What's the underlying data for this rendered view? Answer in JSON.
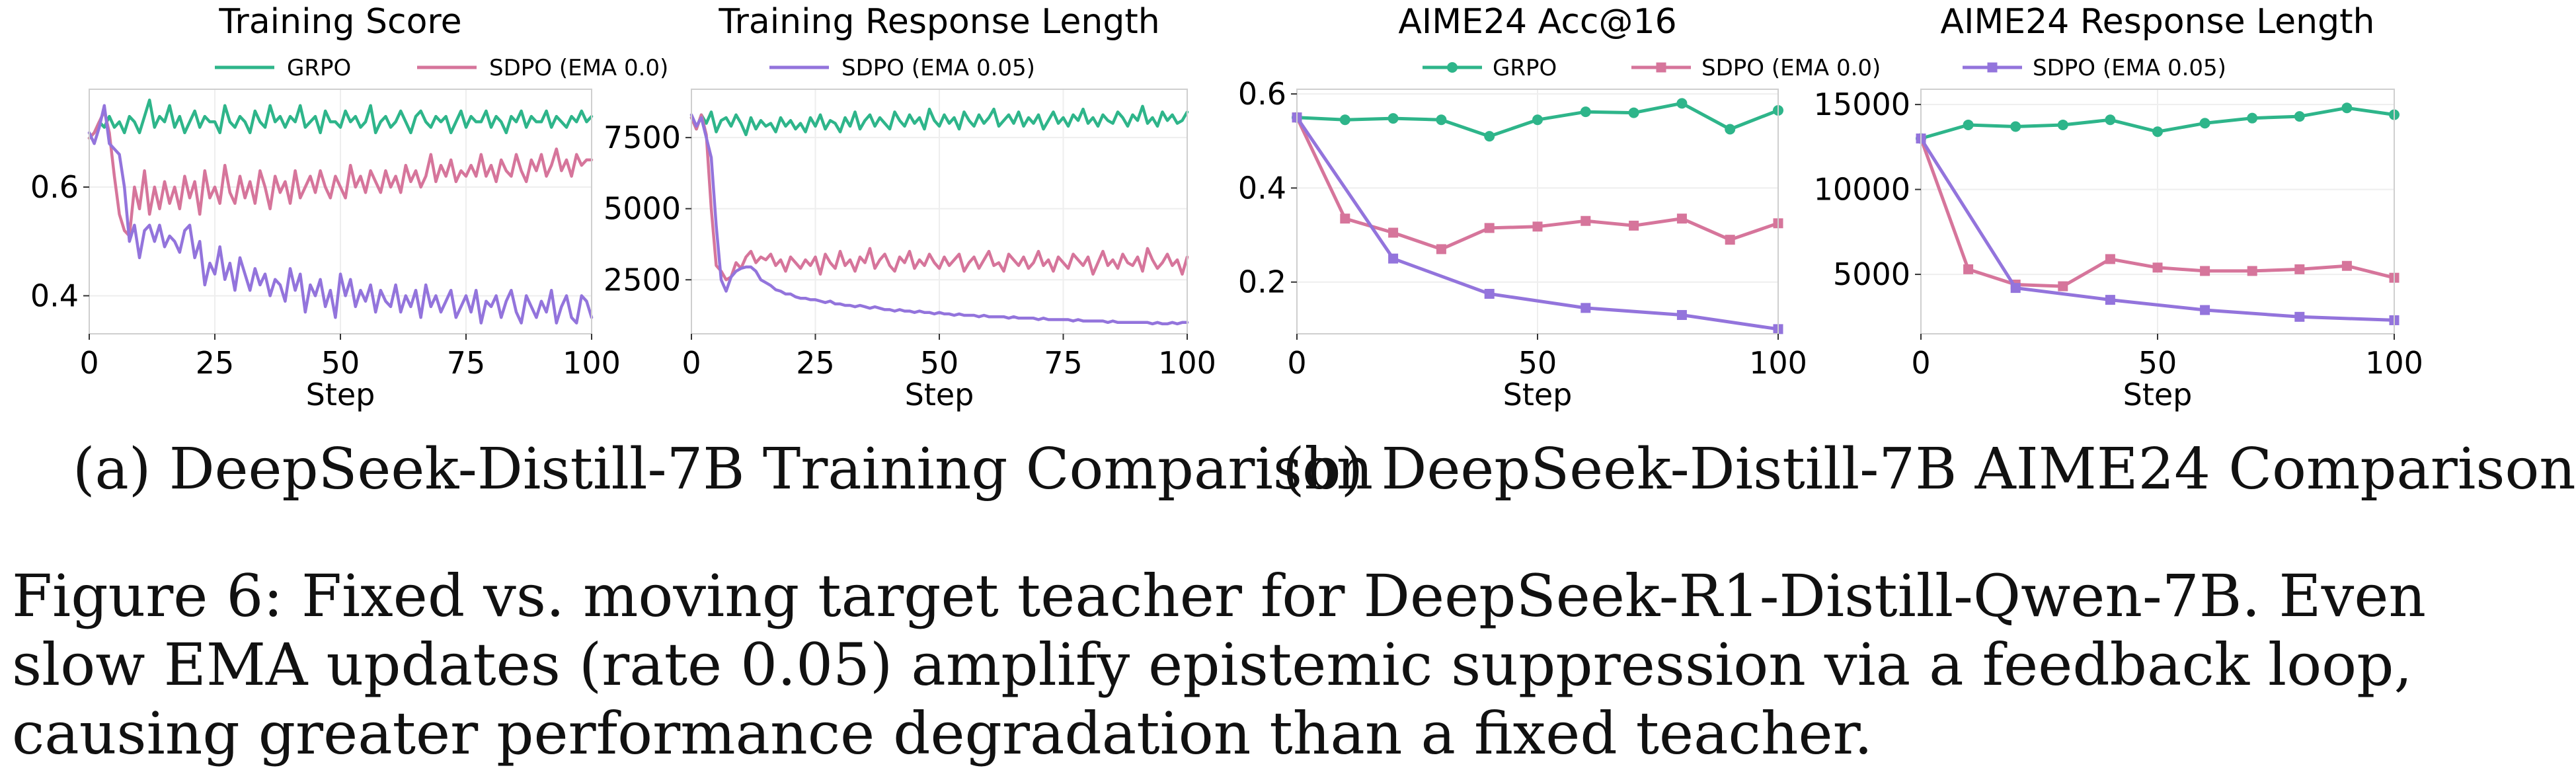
{
  "colors": {
    "grpo": "#2eb58a",
    "sdpo_ema0": "#d6759b",
    "sdpo_ema005": "#9374dc"
  },
  "legend_training": [
    "GRPO",
    "SDPO (EMA 0.0)",
    "SDPO (EMA 0.05)"
  ],
  "legend_aime": [
    "GRPO",
    "SDPO (EMA 0.0)",
    "SDPO (EMA 0.05)"
  ],
  "subcaption_a": "(a) DeepSeek-Distill-7B Training Comparison",
  "subcaption_b": "(b) DeepSeek-Distill-7B AIME24 Comparison",
  "caption": "Figure 6: Fixed vs. moving target teacher for DeepSeek-R1-Distill-Qwen-7B. Even slow EMA updates (rate 0.05) amplify epistemic suppression via a feedback loop, causing greater performance degradation than a fixed teacher.",
  "chart_data": [
    {
      "type": "line",
      "title": "Training Score",
      "xlabel": "Step",
      "ylabel": "",
      "xlim": [
        0,
        100
      ],
      "ylim": [
        0.33,
        0.78
      ],
      "xticks": [
        0,
        25,
        50,
        75,
        100
      ],
      "yticks": [
        0.4,
        0.6
      ],
      "ytick_labels": [
        "0.4",
        "0.6"
      ],
      "grid": true,
      "markers": false,
      "x": [
        0,
        1,
        2,
        3,
        4,
        5,
        6,
        7,
        8,
        9,
        10,
        11,
        12,
        13,
        14,
        15,
        16,
        17,
        18,
        19,
        20,
        21,
        22,
        23,
        24,
        25,
        26,
        27,
        28,
        29,
        30,
        31,
        32,
        33,
        34,
        35,
        36,
        37,
        38,
        39,
        40,
        41,
        42,
        43,
        44,
        45,
        46,
        47,
        48,
        49,
        50,
        51,
        52,
        53,
        54,
        55,
        56,
        57,
        58,
        59,
        60,
        61,
        62,
        63,
        64,
        65,
        66,
        67,
        68,
        69,
        70,
        71,
        72,
        73,
        74,
        75,
        76,
        77,
        78,
        79,
        80,
        81,
        82,
        83,
        84,
        85,
        86,
        87,
        88,
        89,
        90,
        91,
        92,
        93,
        94,
        95,
        96,
        97,
        98,
        99,
        100
      ],
      "series": [
        {
          "name": "GRPO",
          "values": [
            0.69,
            0.7,
            0.72,
            0.71,
            0.73,
            0.71,
            0.72,
            0.7,
            0.73,
            0.72,
            0.7,
            0.73,
            0.76,
            0.71,
            0.73,
            0.72,
            0.75,
            0.71,
            0.73,
            0.7,
            0.72,
            0.74,
            0.71,
            0.73,
            0.72,
            0.72,
            0.7,
            0.75,
            0.72,
            0.71,
            0.73,
            0.72,
            0.7,
            0.74,
            0.72,
            0.71,
            0.75,
            0.72,
            0.73,
            0.71,
            0.73,
            0.72,
            0.75,
            0.71,
            0.72,
            0.73,
            0.7,
            0.74,
            0.72,
            0.72,
            0.71,
            0.74,
            0.72,
            0.73,
            0.71,
            0.72,
            0.75,
            0.7,
            0.72,
            0.73,
            0.71,
            0.72,
            0.74,
            0.72,
            0.7,
            0.73,
            0.74,
            0.72,
            0.71,
            0.73,
            0.72,
            0.73,
            0.7,
            0.72,
            0.74,
            0.71,
            0.73,
            0.72,
            0.72,
            0.74,
            0.71,
            0.73,
            0.72,
            0.7,
            0.73,
            0.72,
            0.74,
            0.71,
            0.73,
            0.72,
            0.72,
            0.74,
            0.71,
            0.73,
            0.72,
            0.71,
            0.73,
            0.72,
            0.74,
            0.72,
            0.73
          ]
        },
        {
          "name": "SDPO (EMA 0.0)",
          "values": [
            0.69,
            0.7,
            0.72,
            0.74,
            0.7,
            0.62,
            0.55,
            0.52,
            0.51,
            0.6,
            0.56,
            0.63,
            0.55,
            0.6,
            0.56,
            0.61,
            0.57,
            0.6,
            0.56,
            0.62,
            0.58,
            0.61,
            0.55,
            0.63,
            0.58,
            0.6,
            0.57,
            0.64,
            0.59,
            0.57,
            0.62,
            0.58,
            0.61,
            0.57,
            0.63,
            0.6,
            0.56,
            0.62,
            0.59,
            0.61,
            0.57,
            0.63,
            0.58,
            0.6,
            0.62,
            0.59,
            0.63,
            0.6,
            0.58,
            0.62,
            0.6,
            0.58,
            0.64,
            0.6,
            0.62,
            0.59,
            0.63,
            0.61,
            0.59,
            0.63,
            0.6,
            0.62,
            0.59,
            0.64,
            0.61,
            0.63,
            0.6,
            0.62,
            0.66,
            0.61,
            0.64,
            0.62,
            0.65,
            0.61,
            0.63,
            0.62,
            0.64,
            0.62,
            0.66,
            0.62,
            0.64,
            0.61,
            0.65,
            0.63,
            0.62,
            0.66,
            0.63,
            0.61,
            0.65,
            0.63,
            0.66,
            0.62,
            0.64,
            0.67,
            0.63,
            0.65,
            0.62,
            0.66,
            0.64,
            0.65,
            0.65
          ]
        },
        {
          "name": "SDPO (EMA 0.05)",
          "values": [
            0.7,
            0.68,
            0.71,
            0.75,
            0.68,
            0.67,
            0.66,
            0.6,
            0.5,
            0.53,
            0.47,
            0.52,
            0.53,
            0.5,
            0.53,
            0.49,
            0.51,
            0.5,
            0.48,
            0.52,
            0.53,
            0.47,
            0.5,
            0.42,
            0.46,
            0.44,
            0.49,
            0.43,
            0.46,
            0.41,
            0.47,
            0.44,
            0.41,
            0.45,
            0.42,
            0.44,
            0.4,
            0.43,
            0.42,
            0.39,
            0.45,
            0.41,
            0.44,
            0.37,
            0.42,
            0.4,
            0.43,
            0.38,
            0.41,
            0.36,
            0.44,
            0.4,
            0.43,
            0.38,
            0.41,
            0.39,
            0.42,
            0.37,
            0.41,
            0.39,
            0.38,
            0.42,
            0.37,
            0.4,
            0.38,
            0.41,
            0.36,
            0.42,
            0.38,
            0.4,
            0.37,
            0.39,
            0.41,
            0.36,
            0.38,
            0.4,
            0.37,
            0.41,
            0.35,
            0.39,
            0.38,
            0.4,
            0.36,
            0.39,
            0.41,
            0.37,
            0.35,
            0.4,
            0.38,
            0.36,
            0.39,
            0.37,
            0.41,
            0.35,
            0.38,
            0.4,
            0.36,
            0.35,
            0.4,
            0.39,
            0.36
          ]
        }
      ]
    },
    {
      "type": "line",
      "title": "Training Response Length",
      "xlabel": "Step",
      "ylabel": "",
      "xlim": [
        0,
        100
      ],
      "ylim": [
        600,
        9200
      ],
      "xticks": [
        0,
        25,
        50,
        75,
        100
      ],
      "yticks": [
        2500,
        5000,
        7500
      ],
      "ytick_labels": [
        "2500",
        "5000",
        "7500"
      ],
      "grid": true,
      "markers": false,
      "x": [
        0,
        1,
        2,
        3,
        4,
        5,
        6,
        7,
        8,
        9,
        10,
        11,
        12,
        13,
        14,
        15,
        16,
        17,
        18,
        19,
        20,
        21,
        22,
        23,
        24,
        25,
        26,
        27,
        28,
        29,
        30,
        31,
        32,
        33,
        34,
        35,
        36,
        37,
        38,
        39,
        40,
        41,
        42,
        43,
        44,
        45,
        46,
        47,
        48,
        49,
        50,
        51,
        52,
        53,
        54,
        55,
        56,
        57,
        58,
        59,
        60,
        61,
        62,
        63,
        64,
        65,
        66,
        67,
        68,
        69,
        70,
        71,
        72,
        73,
        74,
        75,
        76,
        77,
        78,
        79,
        80,
        81,
        82,
        83,
        84,
        85,
        86,
        87,
        88,
        89,
        90,
        91,
        92,
        93,
        94,
        95,
        96,
        97,
        98,
        99,
        100
      ],
      "series": [
        {
          "name": "GRPO",
          "values": [
            8200,
            7800,
            8300,
            8000,
            8400,
            7700,
            8100,
            8200,
            7900,
            8300,
            8000,
            7600,
            8200,
            7800,
            8100,
            7900,
            8000,
            7700,
            8200,
            7900,
            8100,
            7800,
            8000,
            7700,
            8200,
            7900,
            8300,
            7800,
            8100,
            8000,
            7700,
            8200,
            7900,
            8400,
            7800,
            8100,
            8300,
            7900,
            8200,
            8000,
            7800,
            8400,
            8100,
            7900,
            8300,
            8000,
            8200,
            7800,
            8500,
            8100,
            7900,
            8300,
            8000,
            8200,
            7800,
            8400,
            8100,
            7900,
            8300,
            8000,
            8200,
            8500,
            7900,
            8100,
            8300,
            8000,
            8400,
            7900,
            8200,
            8000,
            8300,
            7800,
            8100,
            8400,
            8000,
            8200,
            7900,
            8300,
            8100,
            8500,
            8000,
            8200,
            7900,
            8300,
            8100,
            8000,
            8400,
            8200,
            7900,
            8300,
            8100,
            8600,
            8000,
            8200,
            7900,
            8400,
            8100,
            8300,
            8000,
            8100,
            8400
          ]
        },
        {
          "name": "SDPO (EMA 0.0)",
          "values": [
            8200,
            7800,
            8300,
            7600,
            5000,
            3000,
            2800,
            2500,
            2600,
            3100,
            2900,
            3300,
            3500,
            3100,
            3300,
            3200,
            3400,
            3000,
            3200,
            2800,
            3300,
            3100,
            2900,
            3200,
            3000,
            3300,
            2700,
            3400,
            3100,
            2900,
            3500,
            3000,
            3200,
            2800,
            3300,
            3100,
            3600,
            2900,
            3200,
            3400,
            3000,
            2800,
            3300,
            3100,
            3500,
            2900,
            3200,
            3000,
            3400,
            3100,
            2900,
            3300,
            3000,
            3200,
            3400,
            2800,
            3100,
            3300,
            2900,
            3200,
            3500,
            3000,
            3100,
            2800,
            3400,
            3200,
            3000,
            3300,
            2900,
            3100,
            3500,
            3000,
            3200,
            2800,
            3300,
            3100,
            2900,
            3400,
            3200,
            3000,
            3300,
            2700,
            3100,
            3500,
            3000,
            3200,
            2900,
            3400,
            3100,
            3000,
            3300,
            2800,
            3600,
            3200,
            2900,
            3100,
            3400,
            3000,
            3200,
            2700,
            3300
          ]
        },
        {
          "name": "SDPO (EMA 0.05)",
          "values": [
            8300,
            7900,
            8200,
            7500,
            6800,
            4400,
            2500,
            2100,
            2600,
            2800,
            2900,
            2950,
            2950,
            2800,
            2500,
            2400,
            2300,
            2150,
            2100,
            2000,
            2000,
            1900,
            1850,
            1850,
            1800,
            1800,
            1750,
            1700,
            1750,
            1650,
            1650,
            1600,
            1600,
            1550,
            1600,
            1550,
            1500,
            1550,
            1500,
            1450,
            1450,
            1400,
            1450,
            1400,
            1400,
            1350,
            1400,
            1350,
            1350,
            1300,
            1350,
            1300,
            1300,
            1250,
            1300,
            1250,
            1250,
            1250,
            1200,
            1250,
            1200,
            1200,
            1200,
            1200,
            1150,
            1200,
            1150,
            1150,
            1150,
            1150,
            1100,
            1150,
            1100,
            1100,
            1100,
            1100,
            1100,
            1050,
            1100,
            1050,
            1050,
            1050,
            1050,
            1050,
            1000,
            1050,
            1000,
            1000,
            1000,
            1000,
            1000,
            1000,
            1000,
            950,
            1000,
            950,
            950,
            1000,
            950,
            1000,
            1000
          ]
        }
      ]
    },
    {
      "type": "line",
      "title": "AIME24 Acc@16",
      "xlabel": "Step",
      "ylabel": "",
      "xlim": [
        0,
        100
      ],
      "ylim": [
        0.09,
        0.61
      ],
      "xticks": [
        0,
        50,
        100
      ],
      "yticks": [
        0.2,
        0.4,
        0.6
      ],
      "ytick_labels": [
        "0.2",
        "0.4",
        "0.6"
      ],
      "grid": true,
      "markers": true,
      "series": [
        {
          "name": "GRPO",
          "x": [
            0,
            10,
            20,
            30,
            40,
            50,
            60,
            70,
            80,
            90,
            100
          ],
          "values": [
            0.55,
            0.545,
            0.548,
            0.545,
            0.51,
            0.545,
            0.562,
            0.56,
            0.58,
            0.525,
            0.565
          ]
        },
        {
          "name": "SDPO (EMA 0.0)",
          "x": [
            0,
            10,
            20,
            30,
            40,
            50,
            60,
            70,
            80,
            90,
            100
          ],
          "values": [
            0.55,
            0.335,
            0.305,
            0.27,
            0.315,
            0.318,
            0.33,
            0.32,
            0.335,
            0.29,
            0.325
          ]
        },
        {
          "name": "SDPO (EMA 0.05)",
          "x": [
            0,
            20,
            40,
            60,
            80,
            100
          ],
          "values": [
            0.55,
            0.25,
            0.175,
            0.145,
            0.13,
            0.1
          ]
        }
      ]
    },
    {
      "type": "line",
      "title": "AIME24 Response Length",
      "xlabel": "Step",
      "ylabel": "",
      "xlim": [
        0,
        100
      ],
      "ylim": [
        1500,
        15900
      ],
      "xticks": [
        0,
        50,
        100
      ],
      "yticks": [
        5000,
        10000,
        15000
      ],
      "ytick_labels": [
        "5000",
        "10000",
        "15000"
      ],
      "grid": true,
      "markers": true,
      "series": [
        {
          "name": "GRPO",
          "x": [
            0,
            10,
            20,
            30,
            40,
            50,
            60,
            70,
            80,
            90,
            100
          ],
          "values": [
            13000,
            13800,
            13700,
            13800,
            14100,
            13400,
            13900,
            14200,
            14300,
            14800,
            14400
          ]
        },
        {
          "name": "SDPO (EMA 0.0)",
          "x": [
            0,
            10,
            20,
            30,
            40,
            50,
            60,
            70,
            80,
            90,
            100
          ],
          "values": [
            13000,
            5300,
            4400,
            4300,
            5900,
            5400,
            5200,
            5200,
            5300,
            5500,
            4800
          ]
        },
        {
          "name": "SDPO (EMA 0.05)",
          "x": [
            0,
            20,
            40,
            60,
            80,
            100
          ],
          "values": [
            13000,
            4200,
            3500,
            2900,
            2500,
            2300
          ]
        }
      ]
    }
  ]
}
